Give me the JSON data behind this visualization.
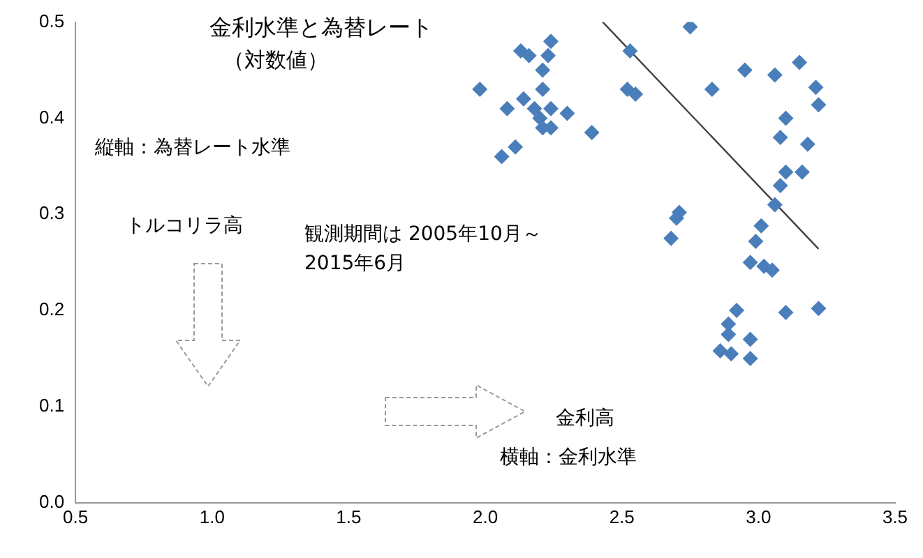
{
  "chart_data": {
    "type": "scatter",
    "title": "金利水準と為替レート",
    "subtitle": "（対数値）",
    "annotations": [
      "縦軸：為替レート水準",
      "トルコリラ高",
      "観測期間は 2005年10月～\n2015年6月",
      "金利高",
      "横軸：金利水準"
    ],
    "xlim": [
      0.5,
      3.5
    ],
    "xticks": [
      0.5,
      {
        "value": 1,
        "label": "1.0"
      },
      1.5,
      {
        "value": 2,
        "label": "2.0"
      },
      2.5,
      {
        "value": 3,
        "label": "3.0"
      },
      3.5
    ],
    "ylim": [
      0,
      0.5
    ],
    "yticks": [
      {
        "value": 0,
        "label": "0.0"
      },
      0.1,
      0.2,
      0.3,
      0.4,
      0.5
    ],
    "grid": false,
    "legend": false,
    "marker": "diamond",
    "series": [
      {
        "color": "#4a7ebb",
        "x": [
          1.98,
          2.06,
          2.11,
          2.13,
          2.08,
          2.16,
          2.24,
          2.23,
          2.21,
          2.21,
          2.18,
          2.2,
          2.24,
          2.3,
          2.21,
          2.14,
          2.39,
          2.24,
          2.75,
          2.53,
          2.52,
          2.55,
          2.83,
          2.95,
          3.06,
          3.15,
          3.21,
          3.22,
          3.1,
          3.08,
          3.18,
          3.16,
          3.1,
          3.08,
          3.06,
          2.71,
          2.7,
          2.68,
          3.01,
          2.99,
          2.97,
          3.02,
          3.05,
          2.92,
          2.89,
          2.86,
          2.9,
          2.97,
          2.97,
          3.1,
          3.22,
          2.89
        ],
        "values": [
          0.43,
          0.36,
          0.37,
          0.47,
          0.41,
          0.465,
          0.48,
          0.465,
          0.45,
          0.43,
          0.41,
          0.4,
          0.39,
          0.405,
          0.39,
          0.42,
          0.385,
          0.41,
          0.495,
          0.47,
          0.43,
          0.425,
          0.43,
          0.45,
          0.445,
          0.458,
          0.432,
          0.414,
          0.4,
          0.38,
          0.373,
          0.344,
          0.344,
          0.33,
          0.31,
          0.302,
          0.296,
          0.275,
          0.288,
          0.272,
          0.25,
          0.246,
          0.242,
          0.2,
          0.175,
          0.158,
          0.155,
          0.17,
          0.15,
          0.198,
          0.202,
          0.186
        ]
      },
      {
        "type": "line",
        "color": "#404040",
        "x": [
          2.43,
          3.22
        ],
        "values": [
          0.5,
          0.264
        ],
        "marker": "none"
      }
    ]
  }
}
